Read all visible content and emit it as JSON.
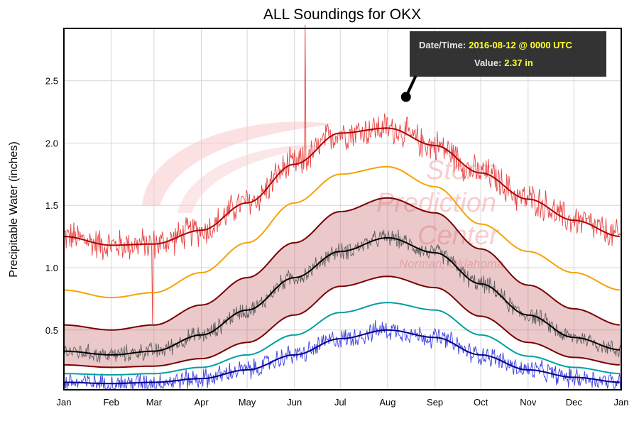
{
  "chart_data": {
    "type": "line",
    "title": "ALL Soundings for OKX",
    "ylabel": "Precipitable Water (inches)",
    "xlabel": "",
    "ylim": [
      0.02,
      2.92
    ],
    "yticks": [
      0.5,
      1.0,
      1.5,
      2.0,
      2.5
    ],
    "ytick_labels": [
      "0.5",
      "1.0",
      "1.5",
      "2.0",
      "2.5"
    ],
    "month_labels": [
      "Jan",
      "Feb",
      "Mar",
      "Apr",
      "May",
      "Jun",
      "Jul",
      "Aug",
      "Sep",
      "Oct",
      "Nov",
      "Dec",
      "Jan"
    ],
    "x_days": [
      0,
      31,
      59,
      90,
      120,
      151,
      181,
      212,
      243,
      273,
      304,
      334,
      365
    ],
    "grid": true,
    "legend": "none",
    "watermark": {
      "line1": "Storm",
      "line2": "Prediction",
      "line3": "Center",
      "line4": "Norman, Oklahoma"
    },
    "tooltip": {
      "date_key": "Date/Time:",
      "date_value": "2016-08-12 @ 0000 UTC",
      "value_key": "Value:",
      "value_value": "2.37 in",
      "point_day": 224,
      "point_value": 2.37
    },
    "climatology_days": [
      0,
      31,
      59,
      90,
      120,
      151,
      181,
      212,
      243,
      273,
      304,
      334,
      365
    ],
    "series": [
      {
        "name": "",
        "role": "max_moving_avg",
        "color": "#b00000",
        "values": [
          1.25,
          1.18,
          1.19,
          1.3,
          1.52,
          1.83,
          2.08,
          2.12,
          1.98,
          1.76,
          1.55,
          1.38,
          1.25
        ]
      },
      {
        "name": "",
        "role": "percentile_90",
        "color": "#f5a300",
        "values": [
          0.82,
          0.76,
          0.8,
          0.96,
          1.2,
          1.52,
          1.75,
          1.81,
          1.65,
          1.35,
          1.13,
          0.96,
          0.82
        ]
      },
      {
        "name": "",
        "role": "percentile_75",
        "color": "#7a0000",
        "values": [
          0.54,
          0.5,
          0.54,
          0.7,
          0.92,
          1.2,
          1.45,
          1.56,
          1.44,
          1.15,
          0.86,
          0.67,
          0.54
        ]
      },
      {
        "name": "",
        "role": "mean",
        "color": "#000000",
        "values": [
          0.33,
          0.3,
          0.33,
          0.46,
          0.66,
          0.92,
          1.13,
          1.24,
          1.12,
          0.87,
          0.62,
          0.44,
          0.34
        ]
      },
      {
        "name": "",
        "role": "percentile_25",
        "color": "#7a0000",
        "values": [
          0.22,
          0.2,
          0.21,
          0.27,
          0.4,
          0.62,
          0.85,
          0.93,
          0.84,
          0.61,
          0.4,
          0.28,
          0.22
        ]
      },
      {
        "name": "",
        "role": "percentile_10",
        "color": "#00a0a0",
        "values": [
          0.15,
          0.14,
          0.15,
          0.2,
          0.3,
          0.46,
          0.64,
          0.72,
          0.66,
          0.46,
          0.29,
          0.2,
          0.15
        ]
      },
      {
        "name": "",
        "role": "min_moving_avg",
        "color": "#00008b",
        "values": [
          0.08,
          0.07,
          0.08,
          0.11,
          0.18,
          0.3,
          0.43,
          0.5,
          0.44,
          0.3,
          0.18,
          0.12,
          0.08
        ]
      }
    ],
    "daily_series": [
      {
        "name": "",
        "role": "daily_max",
        "color": "#e53030",
        "parent": "max_moving_avg",
        "amplitude": 0.11,
        "spikes": [
          {
            "day": 158,
            "value": 2.95
          },
          {
            "day": 58,
            "value": 0.55
          }
        ]
      },
      {
        "name": "",
        "role": "daily_mean",
        "color": "#555555",
        "parent": "mean",
        "amplitude": 0.06,
        "spikes": []
      },
      {
        "name": "",
        "role": "daily_min",
        "color": "#2a2ae0",
        "parent": "min_moving_avg",
        "amplitude": 0.07,
        "spikes": []
      }
    ],
    "band": {
      "upper": "percentile_75",
      "lower": "percentile_25",
      "fill": "#c0585c",
      "opacity": 0.32
    }
  }
}
